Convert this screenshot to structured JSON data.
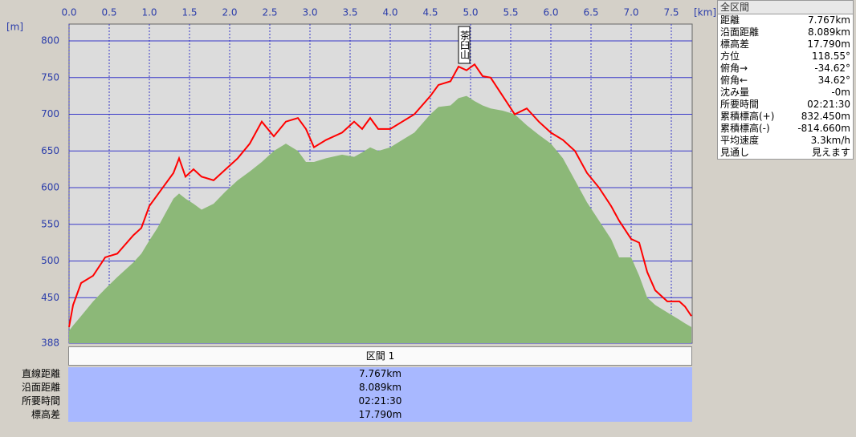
{
  "chart_data": {
    "type": "line_area",
    "x_label": "[km]",
    "y_label": "[m]",
    "annotation": {
      "text": "茶臼山",
      "x": 4.92
    },
    "x": [
      0,
      0.05,
      0.15,
      0.3,
      0.45,
      0.6,
      0.8,
      0.9,
      1.0,
      1.1,
      1.2,
      1.3,
      1.37,
      1.45,
      1.55,
      1.65,
      1.8,
      1.95,
      2.1,
      2.25,
      2.4,
      2.55,
      2.7,
      2.85,
      2.95,
      3.05,
      3.2,
      3.4,
      3.55,
      3.65,
      3.75,
      3.85,
      4.0,
      4.15,
      4.3,
      4.5,
      4.6,
      4.75,
      4.85,
      4.95,
      5.05,
      5.15,
      5.25,
      5.4,
      5.55,
      5.7,
      5.85,
      6.0,
      6.15,
      6.3,
      6.45,
      6.6,
      6.75,
      6.85,
      7.0,
      7.1,
      7.2,
      7.3,
      7.45,
      7.6,
      7.67,
      7.75
    ],
    "series": [
      {
        "color": "#ff0000",
        "kind": "line",
        "values": [
          410,
          440,
          470,
          480,
          505,
          510,
          535,
          545,
          575,
          590,
          605,
          620,
          640,
          615,
          625,
          615,
          610,
          625,
          640,
          660,
          690,
          670,
          690,
          695,
          680,
          655,
          665,
          675,
          690,
          680,
          695,
          680,
          680,
          690,
          700,
          725,
          740,
          745,
          765,
          760,
          768,
          752,
          750,
          725,
          700,
          708,
          690,
          675,
          665,
          650,
          620,
          600,
          575,
          555,
          530,
          525,
          485,
          460,
          445,
          445,
          438,
          425
        ]
      },
      {
        "color": "#8cb878",
        "kind": "area",
        "values": [
          405,
          412,
          425,
          445,
          462,
          478,
          498,
          510,
          528,
          545,
          565,
          585,
          592,
          585,
          578,
          570,
          578,
          595,
          610,
          622,
          635,
          650,
          660,
          650,
          635,
          635,
          640,
          645,
          642,
          648,
          655,
          650,
          655,
          665,
          675,
          700,
          710,
          712,
          722,
          725,
          718,
          712,
          708,
          705,
          700,
          685,
          672,
          660,
          640,
          610,
          580,
          555,
          530,
          505,
          505,
          480,
          450,
          440,
          430,
          420,
          415,
          410
        ]
      }
    ],
    "xlim": [
      0,
      7.76
    ],
    "ylim": [
      388,
      823
    ],
    "xticks": [
      {
        "value": 0,
        "label": "0.0"
      },
      0.5,
      {
        "value": 1,
        "label": "1.0"
      },
      1.5,
      {
        "value": 2,
        "label": "2.0"
      },
      2.5,
      {
        "value": 3,
        "label": "3.0"
      },
      3.5,
      {
        "value": 4,
        "label": "4.0"
      },
      4.5,
      {
        "value": 5,
        "label": "5.0"
      },
      5.5,
      {
        "value": 6,
        "label": "6.0"
      },
      6.5,
      {
        "value": 7,
        "label": "7.0"
      },
      7.5
    ],
    "yticks": [
      388,
      450,
      500,
      550,
      600,
      650,
      700,
      750,
      800
    ],
    "grid": true
  },
  "summary": {
    "title": "全区間",
    "rows": [
      [
        "距離",
        "7.767km"
      ],
      [
        "沿面距離",
        "8.089km"
      ],
      [
        "標高差",
        "17.790m"
      ],
      [
        "方位",
        "118.55°"
      ],
      [
        "俯角→",
        "-34.62°"
      ],
      [
        "俯角←",
        "34.62°"
      ],
      [
        "沈み量",
        "-0m"
      ],
      [
        "所要時間",
        "02:21:30"
      ],
      [
        "累積標高(+)",
        "832.450m"
      ],
      [
        "累積標高(-)",
        "-814.660m"
      ],
      [
        "平均速度",
        "3.3km/h"
      ],
      [
        "見通し",
        "見えます"
      ]
    ]
  },
  "section": {
    "title": "区間 1",
    "rows": [
      [
        "直線距離",
        "7.767km"
      ],
      [
        "沿面距離",
        "8.089km"
      ],
      [
        "所要時間",
        "02:21:30"
      ],
      [
        "標高差",
        "17.790m"
      ]
    ]
  }
}
